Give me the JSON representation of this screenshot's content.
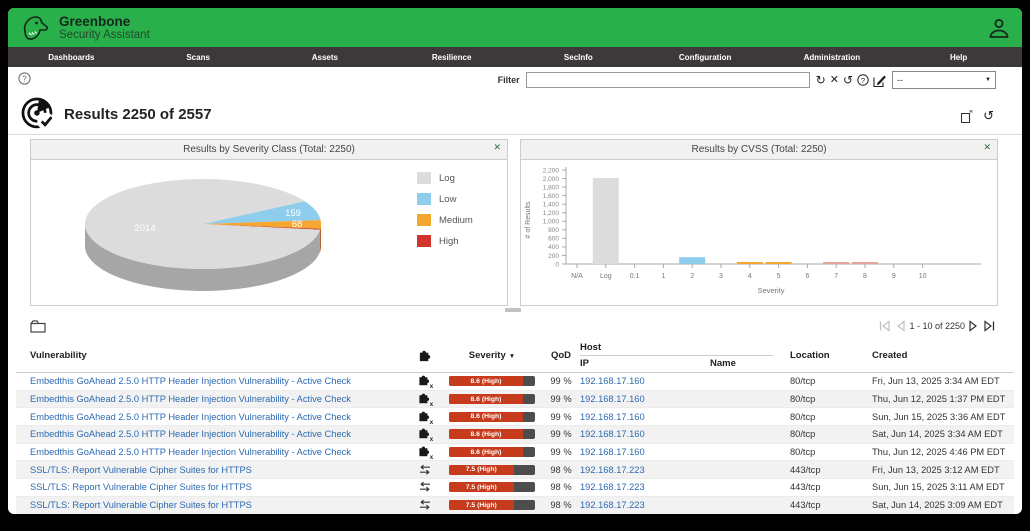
{
  "header": {
    "brand_title": "Greenbone",
    "brand_subtitle": "Security Assistant",
    "nav_items": [
      "Dashboards",
      "Scans",
      "Assets",
      "Resilience",
      "SecInfo",
      "Configuration",
      "Administration",
      "Help"
    ]
  },
  "filter_bar": {
    "label": "Filter",
    "value": "",
    "dropdown_value": "--"
  },
  "page_title": "Results 2250 of 2557",
  "dashboard": {
    "close_label": "✕"
  },
  "chart_data": [
    {
      "type": "pie",
      "title": "Results by Severity Class (Total: 2250)",
      "total": 2250,
      "categories": [
        "Low",
        "Medium",
        "High",
        "Log"
      ],
      "values": [
        159,
        68,
        9,
        2014
      ],
      "colors": [
        "#8ecdec",
        "#f6a72f",
        "#cc3b28",
        "#dcdcdc"
      ],
      "side_colors": [
        "#74aac6",
        "#c07e1a",
        "#8f2a1c",
        "#a6a6a6"
      ],
      "legend": [
        {
          "label": "Log",
          "color": "#dcdcdc"
        },
        {
          "label": "Low",
          "color": "#8ecdec"
        },
        {
          "label": "Medium",
          "color": "#f6a72f"
        },
        {
          "label": "High",
          "color": "#d2352c"
        }
      ],
      "legend_position": "right"
    },
    {
      "type": "bar",
      "title": "Results by CVSS (Total: 2250)",
      "total": 2250,
      "categories": [
        "N/A",
        "Log",
        "0.1",
        "1",
        "2",
        "3",
        "4",
        "5",
        "6",
        "7",
        "8",
        "9",
        "10"
      ],
      "values": [
        0,
        2014,
        0,
        0,
        159,
        0,
        35,
        33,
        0,
        5,
        4,
        0,
        0
      ],
      "colors": [
        "#dcdcdc",
        "#dcdcdc",
        "#8ecdec",
        "#8ecdec",
        "#8ecdec",
        "#8ecdec",
        "#f6a72f",
        "#f6a72f",
        "#f6a72f",
        "#e3a49b",
        "#e3a49b",
        "#e3a49b",
        "#e3a49b"
      ],
      "xlabel": "Severity",
      "ylabel": "# of Results",
      "ylim": [
        0,
        2200
      ],
      "ytick_step": 200,
      "grid": false
    }
  ],
  "results_table": {
    "columns": {
      "vulnerability": "Vulnerability",
      "severity": "Severity",
      "qod": "QoD",
      "host": "Host",
      "ip": "IP",
      "name": "Name",
      "location": "Location",
      "created": "Created"
    },
    "sort_indicator": "▼",
    "rows": [
      {
        "vulnerability": "Embedthis GoAhead 2.5.0 HTTP Header Injection Vulnerability - Active Check",
        "solution_type": "none-available",
        "severity_value": 8.6,
        "severity_label": "8.6 (High)",
        "qod": "99 %",
        "ip": "192.168.17.160",
        "name": "",
        "location": "80/tcp",
        "created": "Fri, Jun 13, 2025 3:34 AM EDT"
      },
      {
        "vulnerability": "Embedthis GoAhead 2.5.0 HTTP Header Injection Vulnerability - Active Check",
        "solution_type": "none-available",
        "severity_value": 8.6,
        "severity_label": "8.6 (High)",
        "qod": "99 %",
        "ip": "192.168.17.160",
        "name": "",
        "location": "80/tcp",
        "created": "Thu, Jun 12, 2025 1:37 PM EDT"
      },
      {
        "vulnerability": "Embedthis GoAhead 2.5.0 HTTP Header Injection Vulnerability - Active Check",
        "solution_type": "none-available",
        "severity_value": 8.6,
        "severity_label": "8.6 (High)",
        "qod": "99 %",
        "ip": "192.168.17.160",
        "name": "",
        "location": "80/tcp",
        "created": "Sun, Jun 15, 2025 3:36 AM EDT"
      },
      {
        "vulnerability": "Embedthis GoAhead 2.5.0 HTTP Header Injection Vulnerability - Active Check",
        "solution_type": "none-available",
        "severity_value": 8.6,
        "severity_label": "8.6 (High)",
        "qod": "99 %",
        "ip": "192.168.17.160",
        "name": "",
        "location": "80/tcp",
        "created": "Sat, Jun 14, 2025 3:34 AM EDT"
      },
      {
        "vulnerability": "Embedthis GoAhead 2.5.0 HTTP Header Injection Vulnerability - Active Check",
        "solution_type": "none-available",
        "severity_value": 8.6,
        "severity_label": "8.6 (High)",
        "qod": "99 %",
        "ip": "192.168.17.160",
        "name": "",
        "location": "80/tcp",
        "created": "Thu, Jun 12, 2025 4:46 PM EDT"
      },
      {
        "vulnerability": "SSL/TLS: Report Vulnerable Cipher Suites for HTTPS",
        "solution_type": "workaround",
        "severity_value": 7.5,
        "severity_label": "7.5 (High)",
        "qod": "98 %",
        "ip": "192.168.17.223",
        "name": "",
        "location": "443/tcp",
        "created": "Fri, Jun 13, 2025 3:12 AM EDT"
      },
      {
        "vulnerability": "SSL/TLS: Report Vulnerable Cipher Suites for HTTPS",
        "solution_type": "workaround",
        "severity_value": 7.5,
        "severity_label": "7.5 (High)",
        "qod": "98 %",
        "ip": "192.168.17.223",
        "name": "",
        "location": "443/tcp",
        "created": "Sun, Jun 15, 2025 3:11 AM EDT"
      },
      {
        "vulnerability": "SSL/TLS: Report Vulnerable Cipher Suites for HTTPS",
        "solution_type": "workaround",
        "severity_value": 7.5,
        "severity_label": "7.5 (High)",
        "qod": "98 %",
        "ip": "192.168.17.223",
        "name": "",
        "location": "443/tcp",
        "created": "Sat, Jun 14, 2025 3:09 AM EDT"
      }
    ]
  },
  "pagination": {
    "range_label": "1 - 10 of 2250"
  }
}
